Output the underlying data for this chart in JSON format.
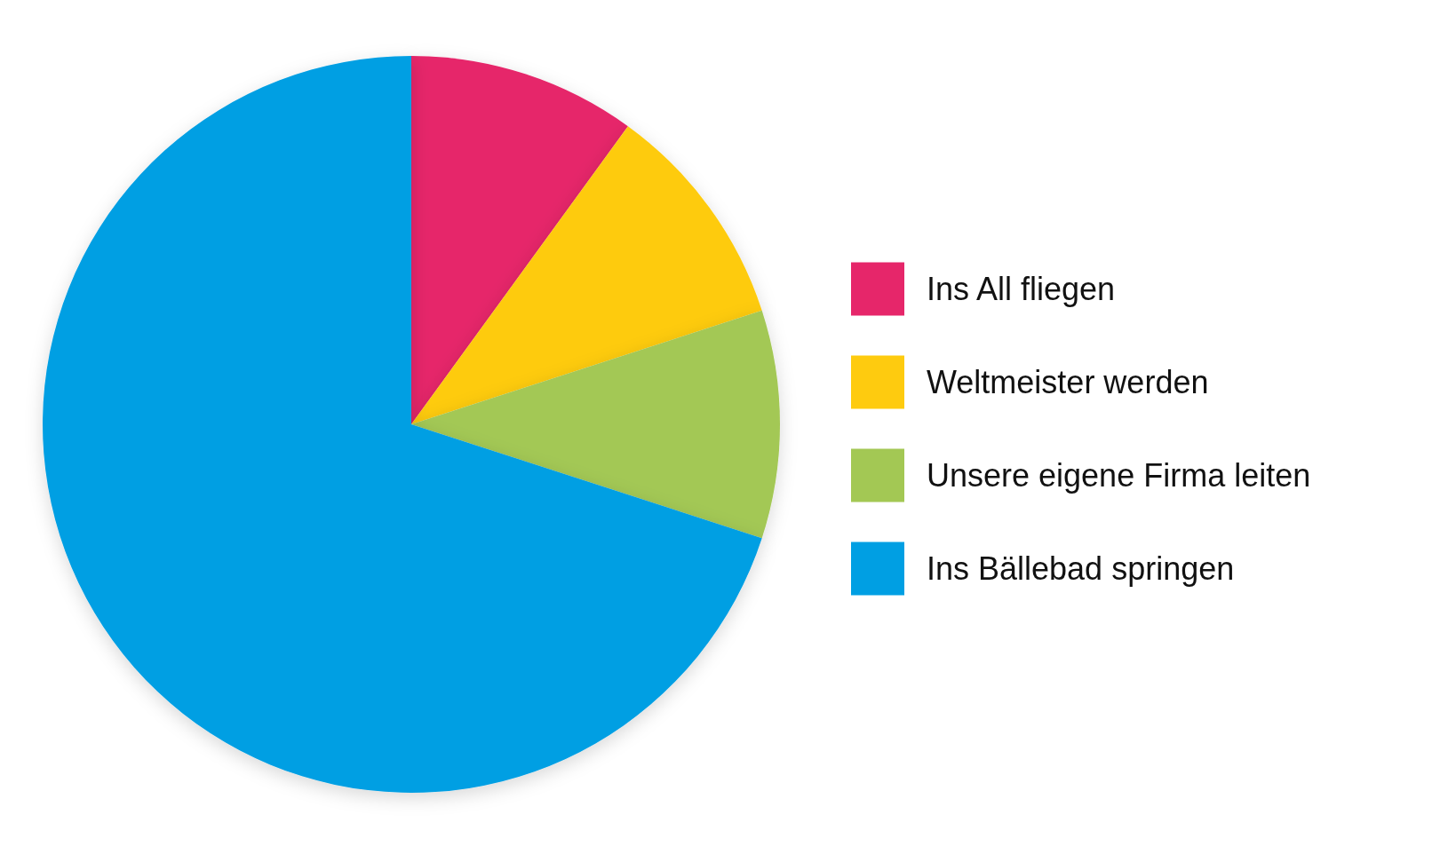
{
  "chart_data": {
    "type": "pie",
    "categories": [
      "Ins All fliegen",
      "Weltmeister werden",
      "Unsere eigene Firma leiten",
      "Ins Bällebad springen"
    ],
    "values": [
      10,
      10,
      10,
      70
    ],
    "colors": [
      "#e6266a",
      "#fecb0f",
      "#a3c854",
      "#009fe3"
    ],
    "legend": "right"
  }
}
